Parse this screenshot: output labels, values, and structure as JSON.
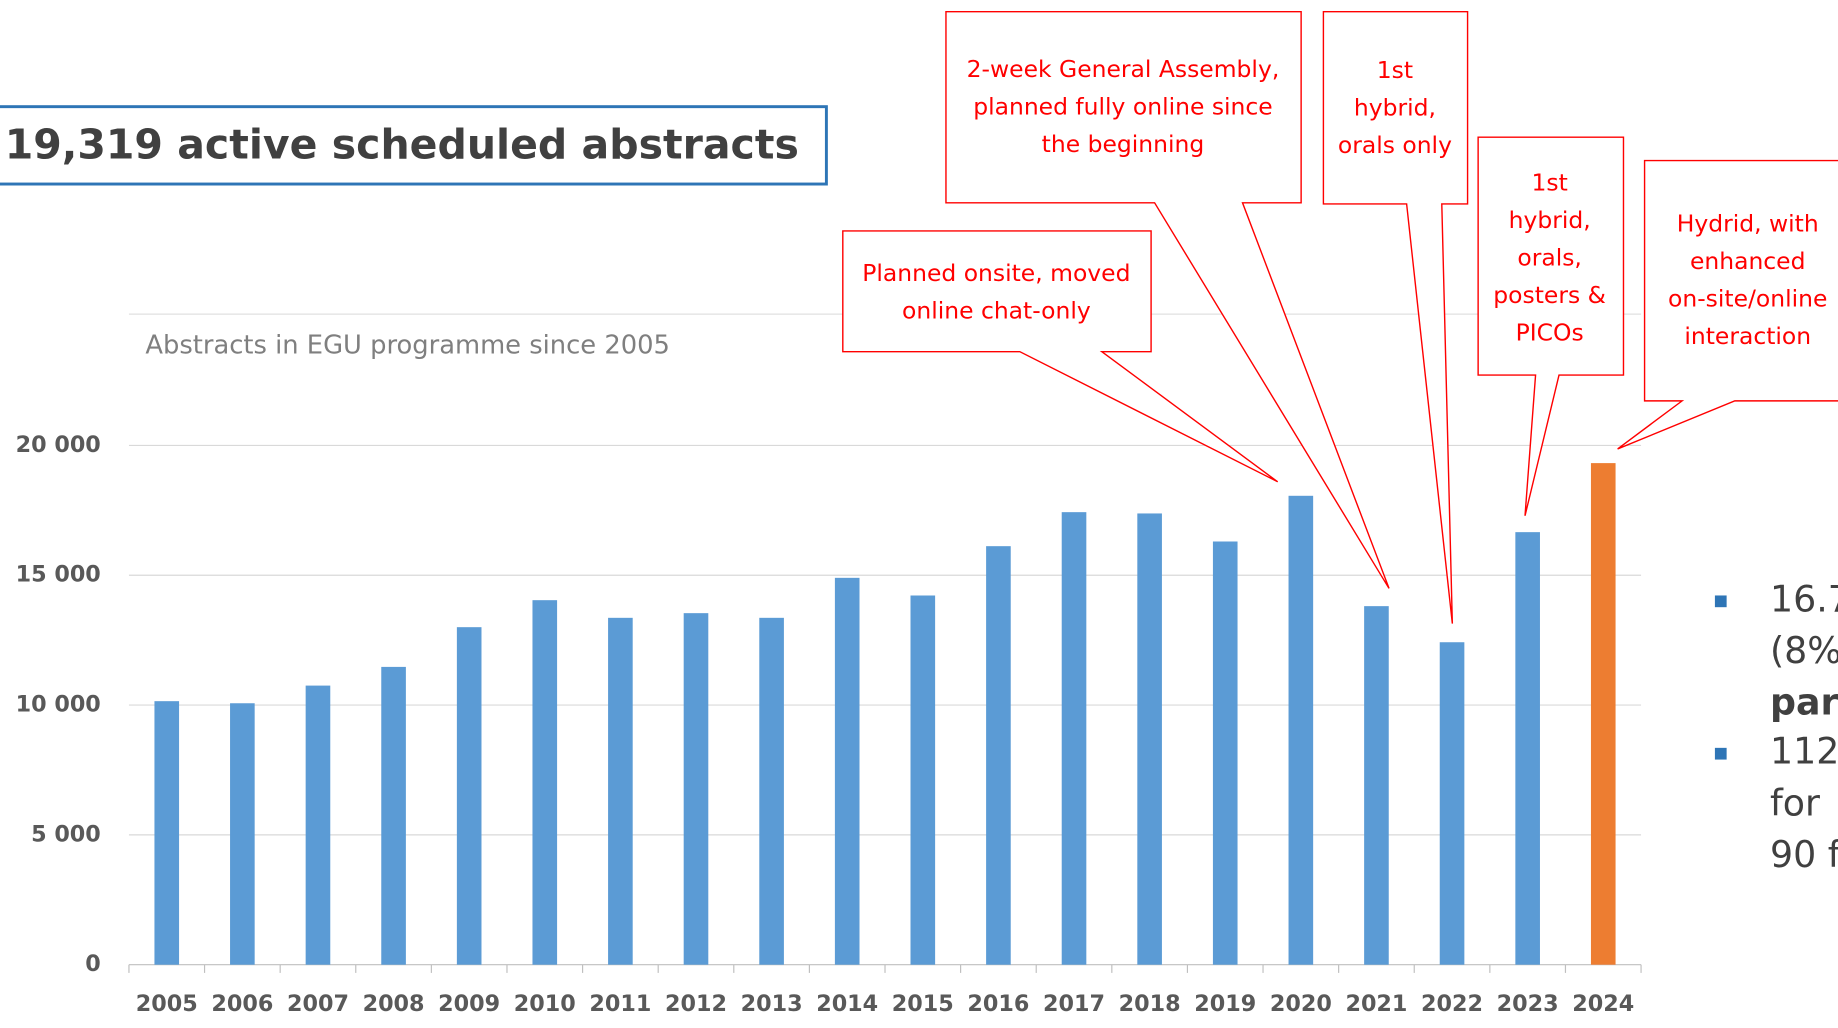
{
  "header_box": {
    "text": "19,319 active scheduled abstracts"
  },
  "chart_data": {
    "type": "bar",
    "subtitle": "Abstracts in EGU programme since 2005",
    "categories": [
      "2005",
      "2006",
      "2007",
      "2008",
      "2009",
      "2010",
      "2011",
      "2012",
      "2013",
      "2014",
      "2015",
      "2016",
      "2017",
      "2018",
      "2019",
      "2020",
      "2021",
      "2022",
      "2023",
      "2024"
    ],
    "values": [
      10150,
      10070,
      10750,
      11470,
      13000,
      14040,
      13360,
      13540,
      13360,
      14900,
      14220,
      16120,
      17430,
      17380,
      16300,
      18060,
      13810,
      12420,
      16660,
      19319
    ],
    "colors": [
      "#5b9bd5",
      "#5b9bd5",
      "#5b9bd5",
      "#5b9bd5",
      "#5b9bd5",
      "#5b9bd5",
      "#5b9bd5",
      "#5b9bd5",
      "#5b9bd5",
      "#5b9bd5",
      "#5b9bd5",
      "#5b9bd5",
      "#5b9bd5",
      "#5b9bd5",
      "#5b9bd5",
      "#5b9bd5",
      "#5b9bd5",
      "#5b9bd5",
      "#5b9bd5",
      "#ed7d31"
    ],
    "ylim": [
      0,
      20000
    ],
    "yticks": [
      0,
      {
        "value": 5000,
        "label": "5 000"
      },
      {
        "value": 10000,
        "label": "10 000"
      },
      {
        "value": 15000,
        "label": "15 000"
      },
      {
        "value": 20000,
        "label": "20 000"
      }
    ],
    "grid": true,
    "annotations": [
      {
        "lines": [
          "Planned onsite, moved",
          "online chat-only"
        ]
      },
      {
        "lines": [
          "2-week General Assembly,",
          "planned fully online since",
          "the beginning"
        ]
      },
      {
        "lines": [
          "1st",
          "hybrid,",
          "orals only"
        ]
      },
      {
        "lines": [
          "1st",
          "hybrid,",
          "orals,",
          "posters &",
          "PICOs"
        ]
      },
      {
        "lines": [
          "Hydrid, with",
          "enhanced",
          "on-site/online",
          "interaction"
        ]
      }
    ]
  },
  "bullets": [
    {
      "lines": [
        "16.7",
        "(8%",
        "par"
      ]
    },
    {
      "lines": [
        "112",
        "for",
        "90 f"
      ]
    }
  ]
}
